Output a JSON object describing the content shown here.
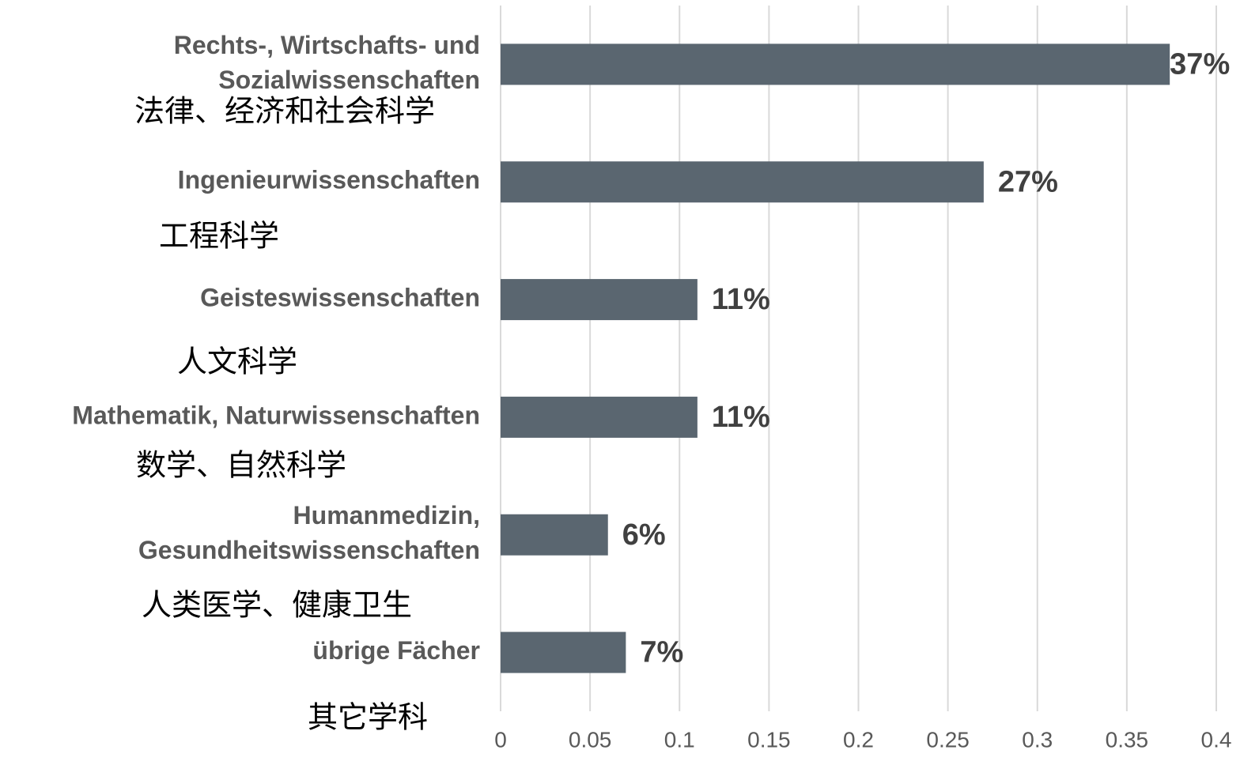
{
  "chart_data": {
    "type": "barh",
    "categories": [
      [
        "Rechts-, Wirtschafts- und",
        "Sozialwissenschaften"
      ],
      [
        "Ingenieurwissenschaften"
      ],
      [
        "Geisteswissenschaften"
      ],
      [
        "Mathematik, Naturwissenschaften"
      ],
      [
        "Humanmedizin,",
        "Gesundheitswissenschaften"
      ],
      [
        "übrige Fächer"
      ]
    ],
    "translations": [
      "法律、经济和社会科学",
      "工程科学",
      "人文科学",
      "数学、自然科学",
      "人类医学、健康卫生",
      "其它学科"
    ],
    "values": [
      0.374,
      0.27,
      0.11,
      0.11,
      0.06,
      0.07
    ],
    "value_labels": [
      "37%",
      "27%",
      "11%",
      "11%",
      "6%",
      "7%"
    ],
    "color": "#5a6670",
    "xlim": [
      0,
      0.4
    ],
    "xticks": [
      0,
      0.05,
      0.1,
      0.15,
      0.2,
      0.25,
      0.3,
      0.35,
      0.4
    ],
    "grid": true
  }
}
